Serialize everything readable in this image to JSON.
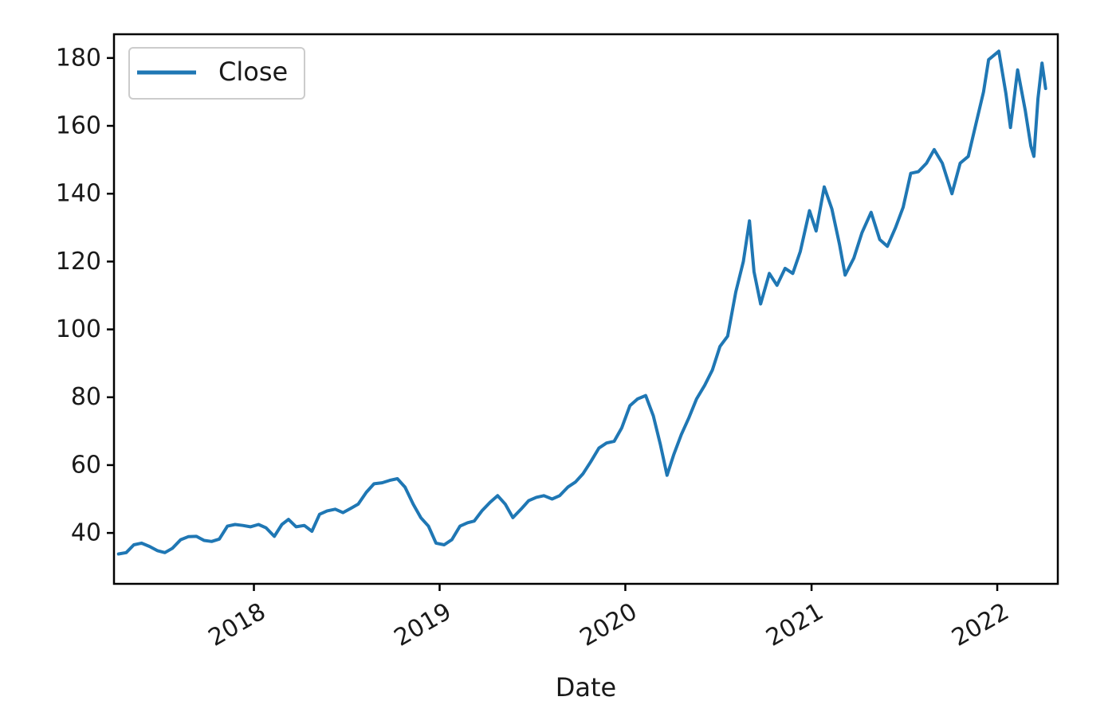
{
  "chart_data": {
    "type": "line",
    "title": "",
    "xlabel": "Date",
    "ylabel": "",
    "x_axis_type": "date",
    "xlim": [
      "2017-04-01",
      "2022-04-30"
    ],
    "ylim": [
      25,
      187
    ],
    "y_ticks": [
      40,
      60,
      80,
      100,
      120,
      140,
      160,
      180
    ],
    "x_ticks": [
      {
        "date": "2018-01-01",
        "label": "2018"
      },
      {
        "date": "2019-01-01",
        "label": "2019"
      },
      {
        "date": "2020-01-01",
        "label": "2020"
      },
      {
        "date": "2021-01-01",
        "label": "2021"
      },
      {
        "date": "2022-01-01",
        "label": "2022"
      }
    ],
    "x_tick_rotation": "30°",
    "grid": false,
    "legend": {
      "placement": "top-left",
      "entries": [
        "Close"
      ]
    },
    "colors": {
      "series": "#1f77b4",
      "axes": "#000000",
      "legend_border": "#cccccc"
    },
    "series": [
      {
        "name": "Close",
        "points": [
          [
            "2017-04-10",
            33.8
          ],
          [
            "2017-04-25",
            34.2
          ],
          [
            "2017-05-10",
            36.5
          ],
          [
            "2017-05-25",
            37.0
          ],
          [
            "2017-06-10",
            36.0
          ],
          [
            "2017-06-25",
            34.8
          ],
          [
            "2017-07-10",
            34.2
          ],
          [
            "2017-07-25",
            35.5
          ],
          [
            "2017-08-10",
            38.0
          ],
          [
            "2017-08-25",
            38.9
          ],
          [
            "2017-09-10",
            39.0
          ],
          [
            "2017-09-25",
            37.8
          ],
          [
            "2017-10-10",
            37.5
          ],
          [
            "2017-10-25",
            38.2
          ],
          [
            "2017-11-10",
            42.0
          ],
          [
            "2017-11-25",
            42.5
          ],
          [
            "2017-12-10",
            42.2
          ],
          [
            "2017-12-25",
            41.8
          ],
          [
            "2018-01-10",
            42.5
          ],
          [
            "2018-01-25",
            41.5
          ],
          [
            "2018-02-10",
            39.0
          ],
          [
            "2018-02-25",
            42.5
          ],
          [
            "2018-03-10",
            44.0
          ],
          [
            "2018-03-25",
            41.8
          ],
          [
            "2018-04-10",
            42.2
          ],
          [
            "2018-04-25",
            40.5
          ],
          [
            "2018-05-10",
            45.5
          ],
          [
            "2018-05-25",
            46.5
          ],
          [
            "2018-06-10",
            47.0
          ],
          [
            "2018-06-25",
            46.0
          ],
          [
            "2018-07-10",
            47.2
          ],
          [
            "2018-07-25",
            48.5
          ],
          [
            "2018-08-10",
            52.0
          ],
          [
            "2018-08-25",
            54.5
          ],
          [
            "2018-09-10",
            54.8
          ],
          [
            "2018-09-25",
            55.5
          ],
          [
            "2018-10-10",
            56.0
          ],
          [
            "2018-10-25",
            53.5
          ],
          [
            "2018-11-10",
            48.5
          ],
          [
            "2018-11-25",
            44.5
          ],
          [
            "2018-12-10",
            42.0
          ],
          [
            "2018-12-25",
            37.0
          ],
          [
            "2019-01-10",
            36.5
          ],
          [
            "2019-01-25",
            38.0
          ],
          [
            "2019-02-10",
            42.0
          ],
          [
            "2019-02-25",
            43.0
          ],
          [
            "2019-03-10",
            43.5
          ],
          [
            "2019-03-25",
            46.5
          ],
          [
            "2019-04-10",
            49.0
          ],
          [
            "2019-04-25",
            51.0
          ],
          [
            "2019-05-10",
            48.5
          ],
          [
            "2019-05-25",
            44.5
          ],
          [
            "2019-06-10",
            47.0
          ],
          [
            "2019-06-25",
            49.5
          ],
          [
            "2019-07-10",
            50.5
          ],
          [
            "2019-07-25",
            51.0
          ],
          [
            "2019-08-10",
            50.0
          ],
          [
            "2019-08-25",
            51.0
          ],
          [
            "2019-09-10",
            53.5
          ],
          [
            "2019-09-25",
            55.0
          ],
          [
            "2019-10-10",
            57.5
          ],
          [
            "2019-10-25",
            61.0
          ],
          [
            "2019-11-10",
            65.0
          ],
          [
            "2019-11-25",
            66.5
          ],
          [
            "2019-12-10",
            67.0
          ],
          [
            "2019-12-25",
            71.0
          ],
          [
            "2020-01-10",
            77.5
          ],
          [
            "2020-01-25",
            79.5
          ],
          [
            "2020-02-10",
            80.5
          ],
          [
            "2020-02-25",
            74.5
          ],
          [
            "2020-03-10",
            66.0
          ],
          [
            "2020-03-23",
            57.0
          ],
          [
            "2020-04-05",
            63.0
          ],
          [
            "2020-04-20",
            69.0
          ],
          [
            "2020-05-05",
            74.0
          ],
          [
            "2020-05-20",
            79.5
          ],
          [
            "2020-06-05",
            83.5
          ],
          [
            "2020-06-20",
            88.0
          ],
          [
            "2020-07-05",
            95.0
          ],
          [
            "2020-07-20",
            98.0
          ],
          [
            "2020-08-05",
            111.0
          ],
          [
            "2020-08-20",
            120.0
          ],
          [
            "2020-09-01",
            132.0
          ],
          [
            "2020-09-10",
            117.0
          ],
          [
            "2020-09-23",
            107.5
          ],
          [
            "2020-10-10",
            116.5
          ],
          [
            "2020-10-25",
            113.0
          ],
          [
            "2020-11-10",
            118.0
          ],
          [
            "2020-11-25",
            116.5
          ],
          [
            "2020-12-10",
            123.0
          ],
          [
            "2020-12-28",
            135.0
          ],
          [
            "2021-01-10",
            129.0
          ],
          [
            "2021-01-26",
            142.0
          ],
          [
            "2021-02-10",
            135.5
          ],
          [
            "2021-02-25",
            125.0
          ],
          [
            "2021-03-08",
            116.0
          ],
          [
            "2021-03-25",
            121.0
          ],
          [
            "2021-04-10",
            128.5
          ],
          [
            "2021-04-28",
            134.5
          ],
          [
            "2021-05-15",
            126.5
          ],
          [
            "2021-05-30",
            124.5
          ],
          [
            "2021-06-15",
            130.0
          ],
          [
            "2021-06-30",
            136.0
          ],
          [
            "2021-07-15",
            146.0
          ],
          [
            "2021-07-30",
            146.5
          ],
          [
            "2021-08-15",
            149.0
          ],
          [
            "2021-08-30",
            153.0
          ],
          [
            "2021-09-15",
            149.0
          ],
          [
            "2021-10-04",
            140.0
          ],
          [
            "2021-10-20",
            149.0
          ],
          [
            "2021-11-05",
            151.0
          ],
          [
            "2021-11-20",
            160.5
          ],
          [
            "2021-12-05",
            170.0
          ],
          [
            "2021-12-15",
            179.5
          ],
          [
            "2022-01-04",
            182.0
          ],
          [
            "2022-01-18",
            169.5
          ],
          [
            "2022-01-27",
            159.5
          ],
          [
            "2022-02-10",
            176.5
          ],
          [
            "2022-02-25",
            164.5
          ],
          [
            "2022-03-08",
            154.0
          ],
          [
            "2022-03-14",
            151.0
          ],
          [
            "2022-03-22",
            168.0
          ],
          [
            "2022-03-30",
            178.5
          ],
          [
            "2022-04-06",
            171.0
          ]
        ]
      }
    ]
  }
}
